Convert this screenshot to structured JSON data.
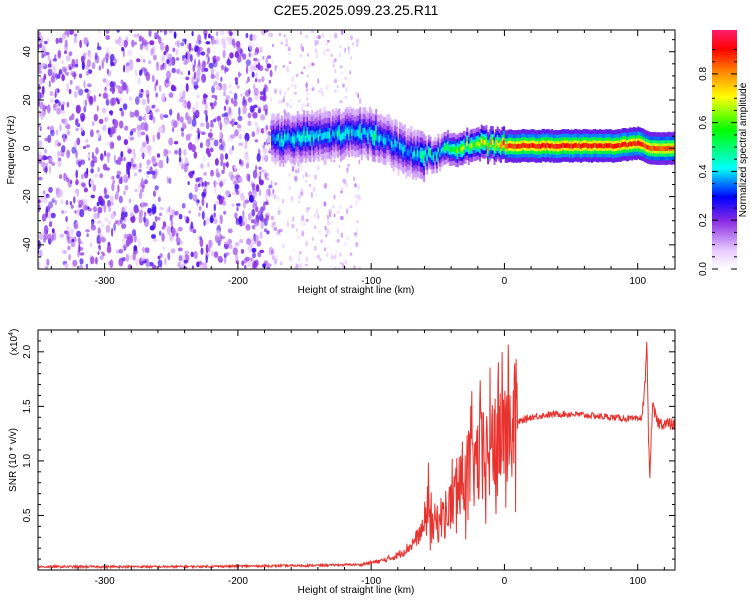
{
  "title": "C2E5.2025.099.23.25.R11",
  "chart_data": [
    {
      "type": "heatmap",
      "xlabel": "Height of straight line (km)",
      "ylabel": "Frequency (Hz)",
      "xlim": [
        -350,
        128
      ],
      "ylim": [
        -50,
        49
      ],
      "xticks": [
        -300,
        -200,
        -100,
        0,
        100
      ],
      "yticks": [
        -40,
        -20,
        0,
        20,
        40
      ],
      "colorbar": {
        "label": "Normalized spectral amplitude",
        "range": [
          0,
          0.98
        ],
        "ticks": [
          "0.0",
          "0.2",
          "0.4",
          "0.6",
          "0.8"
        ],
        "colormap": [
          "#ffffff",
          "#d9b3ff",
          "#8a2be2",
          "#0000ff",
          "#00ffff",
          "#00ff00",
          "#ffff00",
          "#ff8c00",
          "#ff0000",
          "#ff1493"
        ]
      },
      "noise_region_x": [
        -350,
        -108
      ],
      "signal_ridge": {
        "x": [
          -175,
          -160,
          -140,
          -120,
          -100,
          -90,
          -80,
          -70,
          -60,
          -50,
          -40,
          -30,
          -20,
          -10,
          0,
          20,
          40,
          60,
          80,
          100,
          105,
          110,
          128
        ],
        "frequency_center": [
          3,
          4,
          5,
          6,
          6,
          4,
          0,
          -2,
          -3,
          -2,
          0,
          1,
          2,
          1,
          1,
          1,
          1,
          1,
          1,
          2,
          1,
          0,
          0
        ],
        "amplitude": [
          0.45,
          0.45,
          0.45,
          0.45,
          0.5,
          0.45,
          0.4,
          0.45,
          0.5,
          0.5,
          0.6,
          0.65,
          0.7,
          0.8,
          0.9,
          0.95,
          0.95,
          0.95,
          0.95,
          0.95,
          0.9,
          0.9,
          0.9
        ]
      }
    },
    {
      "type": "line",
      "xlabel": "Height of straight line (km)",
      "ylabel": "SNR (10 * v/v)",
      "y_multiplier": "(x10",
      "y_multiplier_exp": "4",
      "y_multiplier_close": ")",
      "xlim": [
        -350,
        128
      ],
      "ylim": [
        0,
        2.2
      ],
      "xticks": [
        -300,
        -200,
        -100,
        0,
        100
      ],
      "yticks": [
        0.5,
        1.0,
        1.5,
        2.0
      ],
      "color": "#e8322d",
      "series": [
        {
          "x": [
            -350,
            -250,
            -150,
            -110,
            -100,
            -90,
            -80,
            -70,
            -60,
            -57,
            -54,
            -50,
            -45,
            -40,
            -35,
            -30,
            -25,
            -20,
            -15,
            -10,
            -5,
            0,
            5,
            10,
            15,
            20,
            30,
            40,
            50,
            60,
            70,
            80,
            90,
            100,
            103,
            105,
            107,
            108,
            109,
            111,
            115,
            128
          ],
          "y": [
            0.02,
            0.02,
            0.03,
            0.04,
            0.06,
            0.08,
            0.12,
            0.2,
            0.35,
            0.7,
            0.4,
            0.45,
            0.5,
            0.6,
            0.75,
            0.85,
            0.95,
            1.0,
            1.05,
            1.1,
            1.2,
            1.3,
            1.32,
            1.35,
            1.38,
            1.4,
            1.42,
            1.43,
            1.43,
            1.42,
            1.41,
            1.4,
            1.39,
            1.38,
            1.4,
            1.6,
            2.1,
            1.3,
            0.8,
            1.5,
            1.35,
            1.33
          ]
        }
      ]
    }
  ]
}
